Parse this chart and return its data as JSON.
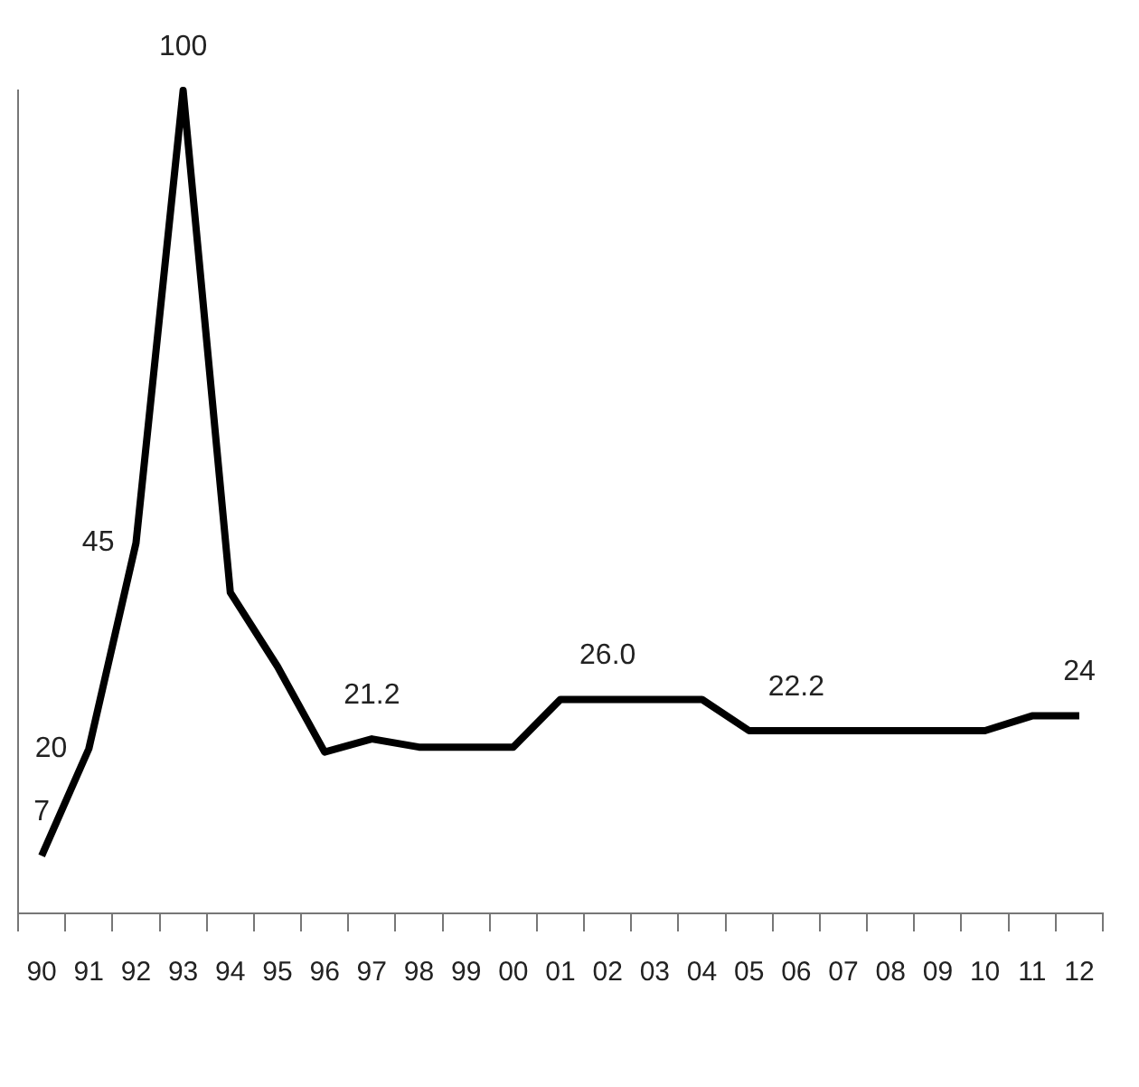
{
  "chart_data": {
    "type": "line",
    "categories": [
      "90",
      "91",
      "92",
      "93",
      "94",
      "95",
      "96",
      "97",
      "98",
      "99",
      "00",
      "01",
      "02",
      "03",
      "04",
      "05",
      "06",
      "07",
      "08",
      "09",
      "10",
      "11",
      "12"
    ],
    "series": [
      {
        "color": "#000000",
        "values": [
          7,
          20,
          45,
          100,
          39,
          30,
          19.6,
          21.2,
          20.2,
          20.2,
          20.2,
          26.0,
          26.0,
          26.0,
          26.0,
          22.2,
          22.2,
          22.2,
          22.2,
          22.2,
          22.2,
          24,
          24
        ],
        "value_labels": [
          "7",
          "20",
          "45",
          "100",
          null,
          null,
          null,
          "21.2",
          null,
          null,
          null,
          null,
          "26.0",
          null,
          null,
          null,
          "22.2",
          null,
          null,
          null,
          null,
          null,
          "24"
        ]
      }
    ],
    "marker": "none",
    "grid": false,
    "legend": false,
    "tick_labels": "x"
  }
}
